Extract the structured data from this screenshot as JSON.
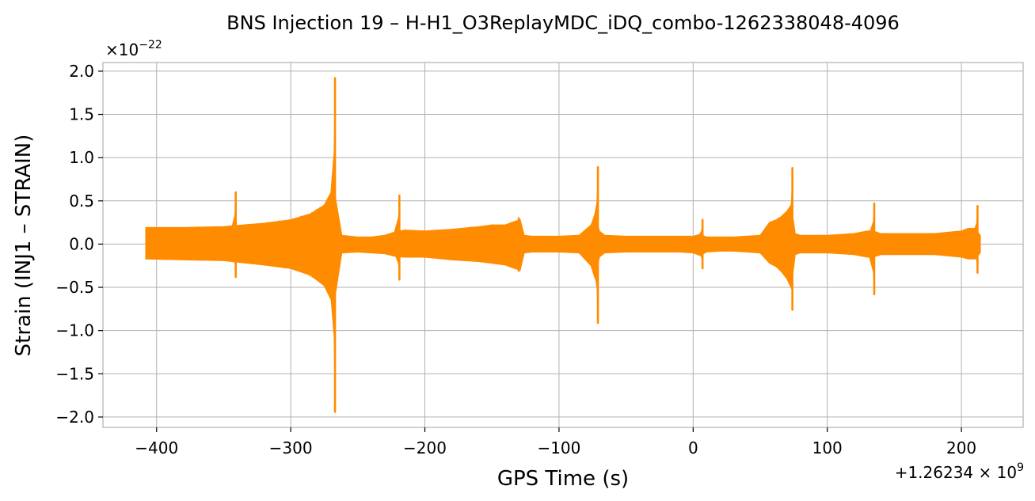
{
  "chart_data": {
    "type": "line",
    "title": "BNS Injection 19 – H-H1_O3ReplayMDC_iDQ_combo-1262338048-4096",
    "xlabel": "GPS Time (s)",
    "ylabel": "Strain (INJ1 – STRAIN)",
    "x_offset_label": "+1.26234 × 10",
    "x_offset_exponent": "9",
    "y_scale_label": "×10",
    "y_scale_exponent": "−22",
    "xlim": [
      -440,
      246
    ],
    "ylim": [
      -2.12,
      2.1
    ],
    "xticks": [
      -400,
      -300,
      -200,
      -100,
      0,
      100,
      200
    ],
    "xtick_labels": [
      "−400",
      "−300",
      "−200",
      "−100",
      "0",
      "100",
      "200"
    ],
    "yticks": [
      -2.0,
      -1.5,
      -1.0,
      -0.5,
      0.0,
      0.5,
      1.0,
      1.5,
      2.0
    ],
    "ytick_labels": [
      "−2.0",
      "−1.5",
      "−1.0",
      "−0.5",
      "0.0",
      "0.5",
      "1.0",
      "1.5",
      "2.0"
    ],
    "grid": true,
    "series_color": "#ff8c00",
    "x_range": [
      -408,
      214
    ],
    "envelope": {
      "x": [
        -408,
        -380,
        -350,
        -320,
        -300,
        -285,
        -275,
        -268,
        -262,
        -250,
        -240,
        -230,
        -222,
        -215,
        -200,
        -180,
        -160,
        -150,
        -140,
        -133,
        -129,
        -126,
        -120,
        -100,
        -85,
        -76,
        -73,
        -70,
        -66,
        -50,
        -30,
        -10,
        0,
        5,
        10,
        20,
        30,
        50,
        57,
        62,
        66,
        70,
        73,
        76,
        80,
        100,
        120,
        130,
        134,
        140,
        160,
        180,
        200,
        205,
        210,
        214
      ],
      "upper": [
        0.19,
        0.19,
        0.2,
        0.24,
        0.28,
        0.35,
        0.45,
        0.65,
        0.1,
        0.08,
        0.08,
        0.1,
        0.14,
        0.16,
        0.15,
        0.17,
        0.2,
        0.22,
        0.22,
        0.26,
        0.28,
        0.1,
        0.09,
        0.09,
        0.1,
        0.22,
        0.35,
        0.15,
        0.1,
        0.09,
        0.09,
        0.09,
        0.09,
        0.11,
        0.08,
        0.08,
        0.08,
        0.1,
        0.25,
        0.28,
        0.32,
        0.38,
        0.45,
        0.12,
        0.1,
        0.1,
        0.12,
        0.15,
        0.15,
        0.12,
        0.12,
        0.12,
        0.15,
        0.18,
        0.18,
        0.1
      ],
      "lower": [
        -0.17,
        -0.18,
        -0.19,
        -0.24,
        -0.28,
        -0.36,
        -0.48,
        -0.7,
        -0.1,
        -0.09,
        -0.1,
        -0.11,
        -0.14,
        -0.15,
        -0.15,
        -0.18,
        -0.2,
        -0.22,
        -0.24,
        -0.28,
        -0.3,
        -0.1,
        -0.09,
        -0.09,
        -0.1,
        -0.25,
        -0.4,
        -0.15,
        -0.1,
        -0.09,
        -0.09,
        -0.09,
        -0.1,
        -0.13,
        -0.09,
        -0.08,
        -0.08,
        -0.1,
        -0.22,
        -0.26,
        -0.32,
        -0.4,
        -0.5,
        -0.12,
        -0.1,
        -0.1,
        -0.12,
        -0.15,
        -0.15,
        -0.12,
        -0.12,
        -0.12,
        -0.15,
        -0.17,
        -0.17,
        -0.1
      ]
    },
    "spikes": [
      {
        "x": -341,
        "max": 0.6,
        "min": -0.38
      },
      {
        "x": -267,
        "max": 1.92,
        "min": -1.94
      },
      {
        "x": -219,
        "max": 0.56,
        "min": -0.41
      },
      {
        "x": -130,
        "max": 0.3,
        "min": -0.31
      },
      {
        "x": -71,
        "max": 0.89,
        "min": -0.91
      },
      {
        "x": 7,
        "max": 0.28,
        "min": -0.28
      },
      {
        "x": 74,
        "max": 0.88,
        "min": -0.76
      },
      {
        "x": 135,
        "max": 0.47,
        "min": -0.58
      },
      {
        "x": 212,
        "max": 0.44,
        "min": -0.33
      }
    ]
  }
}
